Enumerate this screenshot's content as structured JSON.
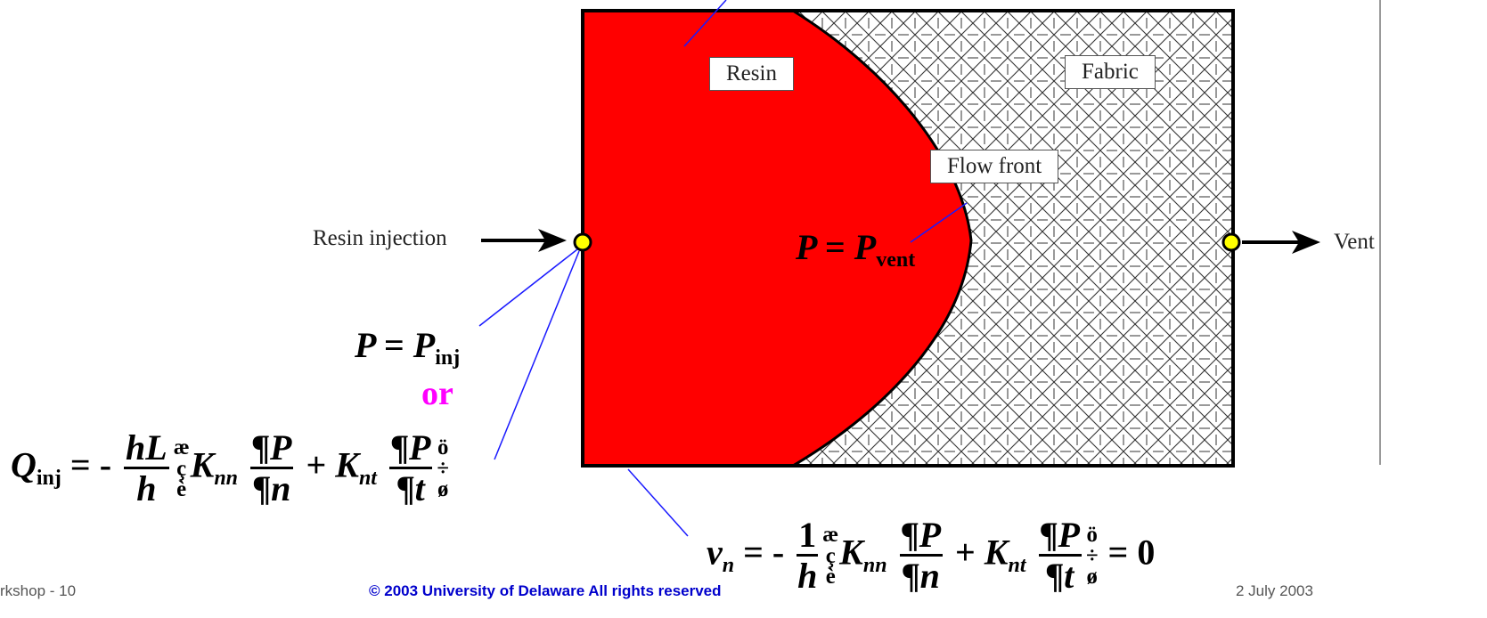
{
  "diagram": {
    "labels": {
      "resin": "Resin",
      "fabric": "Fabric",
      "flow_front": "Flow front",
      "resin_injection": "Resin injection",
      "vent": "Vent",
      "or": "or"
    },
    "equations": {
      "p_vent": {
        "lhs": "P",
        "eq": "=",
        "rhs": "P",
        "sub": "vent"
      },
      "p_inj": {
        "lhs": "P",
        "eq": "=",
        "rhs": "P",
        "sub": "inj"
      },
      "q_inj": {
        "lhs": "Q",
        "lhs_sub": "inj",
        "eq": "=",
        "minus": "-",
        "frac1_num": "hL",
        "frac1_den": "h",
        "open_top": "æ",
        "open_mid": "ç",
        "open_bot": "è",
        "k1": "K",
        "k1_sub": "nn",
        "frac2_num": "¶P",
        "frac2_den": "¶n",
        "plus": "+",
        "k2": "K",
        "k2_sub": "nt",
        "frac3_num": "¶P",
        "frac3_den": "¶t",
        "close_top": "ö",
        "close_mid": "÷",
        "close_bot": "ø"
      },
      "v_n": {
        "lhs": "v",
        "lhs_sub": "n",
        "eq": "=",
        "minus": "-",
        "frac1_num": "1",
        "frac1_den": "h",
        "open_top": "æ",
        "open_mid": "ç",
        "open_bot": "è",
        "k1": "K",
        "k1_sub": "nn",
        "frac2_num": "¶P",
        "frac2_den": "¶n",
        "plus": "+",
        "k2": "K",
        "k2_sub": "nt",
        "frac3_num": "¶P",
        "frac3_den": "¶t",
        "close_top": "ö",
        "close_mid": "÷",
        "close_bot": "ø",
        "rhs_eq": "=",
        "rhs_zero": "0"
      }
    }
  },
  "footer": {
    "left": "rkshop - 10",
    "center": "© 2003 University of Delaware All rights reserved",
    "right": "2 July 2003"
  },
  "colors": {
    "resin": "#ff0000",
    "fabric_background": "#ffffff",
    "fabric_hatch": "#333333",
    "leader_lines": "#1a1aff",
    "port": "#ffff00",
    "or_text": "#ff00ff"
  }
}
